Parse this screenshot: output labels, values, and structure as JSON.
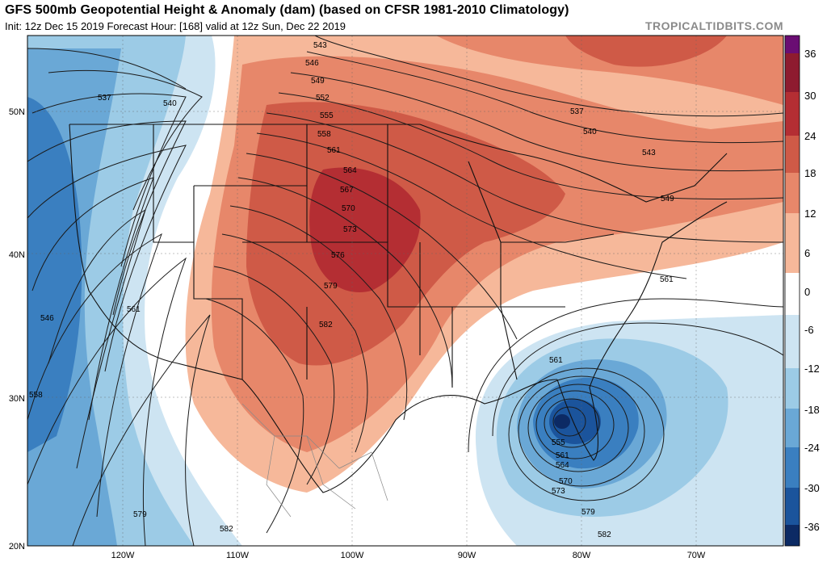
{
  "header": {
    "title": "GFS 500mb Geopotential Height & Anomaly (dam) (based on CFSR 1981-2010 Climatology)",
    "subtitle": "Init: 12z Dec 15 2019   Forecast Hour: [168]   valid at 12z Sun, Dec 22 2019",
    "brand": "TROPICALTIDBITS.COM"
  },
  "map": {
    "lat_labels": [
      "50N",
      "40N",
      "30N",
      "20N"
    ],
    "lon_labels": [
      "120W",
      "110W",
      "100W",
      "90W",
      "80W",
      "70W"
    ],
    "contour_labels": [
      "543",
      "546",
      "549",
      "552",
      "555",
      "558",
      "561",
      "564",
      "567",
      "570",
      "573",
      "576",
      "579",
      "582",
      "537",
      "540",
      "537",
      "540",
      "543",
      "549",
      "561",
      "546",
      "561",
      "558",
      "561",
      "555",
      "561",
      "564",
      "570",
      "573",
      "579",
      "579",
      "582",
      "582"
    ]
  },
  "colorbar": {
    "ticks": [
      "36",
      "30",
      "24",
      "18",
      "12",
      "6",
      "0",
      "-6",
      "-12",
      "-18",
      "-24",
      "-30",
      "-36"
    ],
    "colors": {
      "c36": "#6a0d73",
      "c30": "#8e1b2f",
      "c24": "#b42e33",
      "c18": "#cf5a47",
      "c12": "#e7876a",
      "c6": "#f6b89a",
      "c0": "#ffffff",
      "cm6": "#cde4f2",
      "cm12": "#9ccbe6",
      "cm18": "#6aa8d6",
      "cm24": "#3a7fc0",
      "cm30": "#1b549c",
      "cm36": "#0c2a64"
    }
  }
}
